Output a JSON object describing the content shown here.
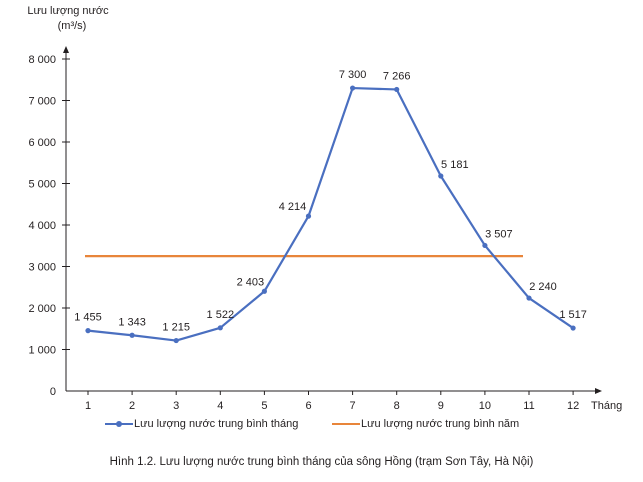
{
  "chart_data": {
    "type": "line",
    "title": "",
    "ylabel_line1": "Lưu lượng nước",
    "ylabel_line2": "(m³/s)",
    "xlabel": "Tháng",
    "categories": [
      "1",
      "2",
      "3",
      "4",
      "5",
      "6",
      "7",
      "8",
      "9",
      "10",
      "11",
      "12"
    ],
    "ylim": [
      0,
      8000
    ],
    "yticks": [
      0,
      1000,
      2000,
      3000,
      4000,
      5000,
      6000,
      7000,
      8000
    ],
    "ytick_labels": [
      "0",
      "1 000",
      "2 000",
      "3 000",
      "4 000",
      "5 000",
      "6 000",
      "7 000",
      "8 000"
    ],
    "series": [
      {
        "name": "Lưu lượng nước trung bình tháng",
        "color": "#4a6fc0",
        "values": [
          1455,
          1343,
          1215,
          1522,
          2403,
          4214,
          7300,
          7266,
          5181,
          3507,
          2240,
          1517
        ],
        "labels": [
          "1 455",
          "1 343",
          "1 215",
          "1 522",
          "2 403",
          "4 214",
          "7 300",
          "7 266",
          "5 181",
          "3 507",
          "2 240",
          "1 517"
        ]
      },
      {
        "name": "Lưu lượng nước trung bình năm",
        "color": "#e8853a",
        "value": 3250
      }
    ],
    "grid": false,
    "legend": "bottom"
  },
  "caption": "Hình 1.2. Lưu lượng nước trung bình tháng của sông Hồng (trạm Sơn Tây, Hà Nội)"
}
